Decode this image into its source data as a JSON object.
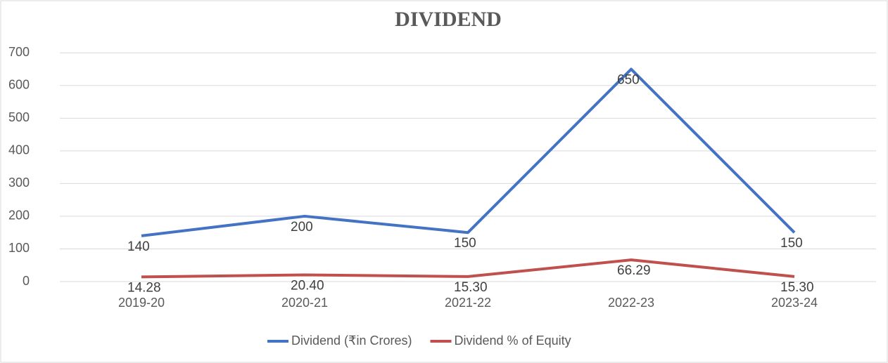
{
  "chart_data": {
    "type": "line",
    "title": "DIVIDEND",
    "categories": [
      "2019-20",
      "2020-21",
      "2021-22",
      "2022-23",
      "2023-24"
    ],
    "series": [
      {
        "name": "Dividend (₹in Crores)",
        "color": "#4472c4",
        "values": [
          140,
          200,
          150,
          650,
          150
        ]
      },
      {
        "name": "Dividend % of Equity",
        "color": "#c0504d",
        "values": [
          14.28,
          20.4,
          15.3,
          66.29,
          15.3
        ],
        "value_labels": [
          "14.28",
          "20.40",
          "15.30",
          "66.29",
          "15.30"
        ]
      }
    ],
    "ylim": [
      0,
      750
    ],
    "yticks": [
      0,
      100,
      200,
      300,
      400,
      500,
      600,
      700
    ],
    "grid": true,
    "legend": "bottom"
  }
}
